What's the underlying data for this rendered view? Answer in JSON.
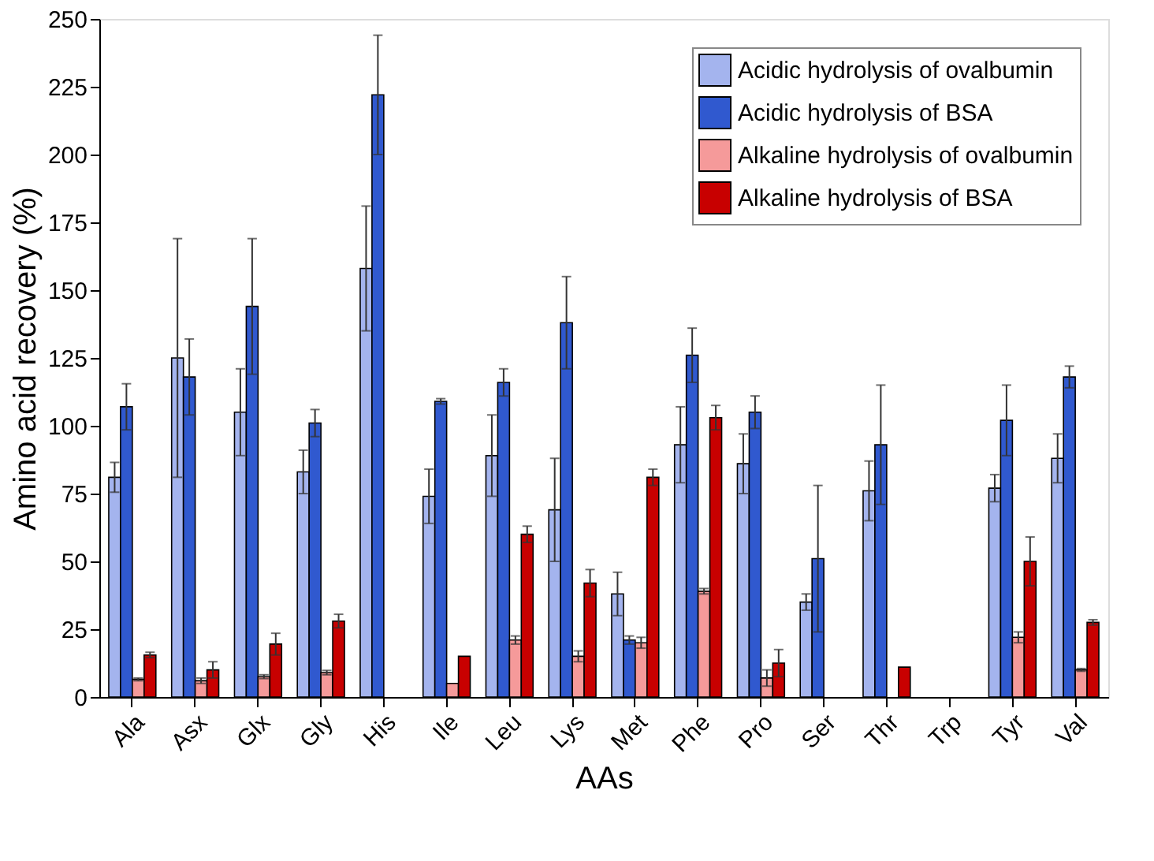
{
  "chart_data": {
    "type": "bar",
    "xlabel": "AAs",
    "ylabel": "Amino acid recovery (%)",
    "categories": [
      "Ala",
      "Asx",
      "Glx",
      "Gly",
      "His",
      "Ile",
      "Leu",
      "Lys",
      "Met",
      "Phe",
      "Pro",
      "Ser",
      "Thr",
      "Trp",
      "Tyr",
      "Val"
    ],
    "series": [
      {
        "name": "Acidic hydrolysis of ovalbumin",
        "color": "#a4b4ee",
        "values": [
          81,
          125,
          105,
          83,
          158,
          74,
          89,
          69,
          38,
          93,
          86,
          35,
          76,
          null,
          77,
          88
        ],
        "errors": [
          5.5,
          44,
          16,
          8,
          23,
          10,
          15,
          19,
          8,
          14,
          11,
          3,
          11,
          null,
          5,
          9
        ]
      },
      {
        "name": "Acidic hydrolysis of BSA",
        "color": "#3059cf",
        "values": [
          107,
          118,
          144,
          101,
          222,
          109,
          116,
          138,
          21,
          126,
          105,
          51,
          93,
          null,
          102,
          118
        ],
        "errors": [
          8.5,
          14,
          25,
          5,
          22,
          1,
          5,
          17,
          1.5,
          10,
          6,
          27,
          22,
          null,
          13,
          4
        ]
      },
      {
        "name": "Alkaline hydrolysis of ovalbumin",
        "color": "#f59a9a",
        "values": [
          6.5,
          6,
          7.5,
          9,
          null,
          5,
          21,
          15,
          20,
          39,
          7,
          null,
          null,
          null,
          22,
          10
        ],
        "errors": [
          0.5,
          1,
          0.7,
          0.8,
          null,
          null,
          1.5,
          2,
          2,
          1,
          3,
          null,
          null,
          null,
          2,
          0.5
        ]
      },
      {
        "name": "Alkaline hydrolysis of BSA",
        "color": "#c80000",
        "values": [
          15.5,
          10,
          19.5,
          28,
          null,
          15,
          60,
          42,
          81,
          103,
          12.5,
          null,
          11,
          null,
          50,
          27.5
        ],
        "errors": [
          1,
          3,
          4,
          2.5,
          null,
          null,
          3,
          5,
          3,
          4.5,
          5,
          null,
          null,
          null,
          9,
          1
        ]
      }
    ],
    "ylim": [
      0,
      250
    ],
    "yticks": [
      0,
      25,
      50,
      75,
      100,
      125,
      150,
      175,
      200,
      225,
      250
    ],
    "grid": false,
    "legend": "top right"
  }
}
